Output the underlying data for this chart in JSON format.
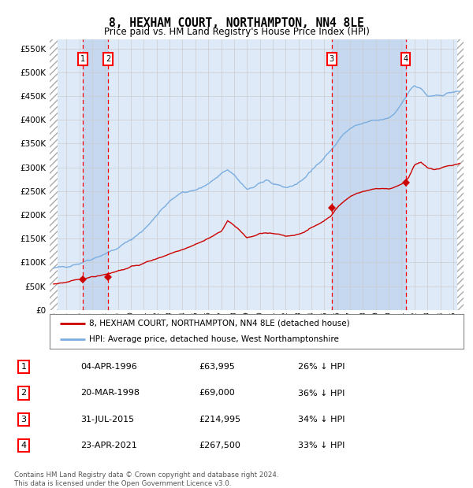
{
  "title": "8, HEXHAM COURT, NORTHAMPTON, NN4 8LE",
  "subtitle": "Price paid vs. HM Land Registry's House Price Index (HPI)",
  "title_fontsize": 10.5,
  "subtitle_fontsize": 8.5,
  "xlim": [
    1993.7,
    2025.8
  ],
  "ylim": [
    0,
    570000
  ],
  "yticks": [
    0,
    50000,
    100000,
    150000,
    200000,
    250000,
    300000,
    350000,
    400000,
    450000,
    500000,
    550000
  ],
  "ytick_labels": [
    "£0",
    "£50K",
    "£100K",
    "£150K",
    "£200K",
    "£250K",
    "£300K",
    "£350K",
    "£400K",
    "£450K",
    "£500K",
    "£550K"
  ],
  "xtick_years": [
    1994,
    1995,
    1996,
    1997,
    1998,
    1999,
    2000,
    2001,
    2002,
    2003,
    2004,
    2005,
    2006,
    2007,
    2008,
    2009,
    2010,
    2011,
    2012,
    2013,
    2014,
    2015,
    2016,
    2017,
    2018,
    2019,
    2020,
    2021,
    2022,
    2023,
    2024,
    2025
  ],
  "grid_color": "#cccccc",
  "bg_color": "#deeaf7",
  "shade_color": "#c5d8ef",
  "red_line_color": "#cc0000",
  "blue_line_color": "#7aade0",
  "sale_color": "#cc0000",
  "transactions": [
    {
      "num": 1,
      "year": 1996.27,
      "price": 63995,
      "label": "1"
    },
    {
      "num": 2,
      "year": 1998.22,
      "price": 69000,
      "label": "2"
    },
    {
      "num": 3,
      "year": 2015.58,
      "price": 214995,
      "label": "3"
    },
    {
      "num": 4,
      "year": 2021.31,
      "price": 267500,
      "label": "4"
    }
  ],
  "table_rows": [
    {
      "num": "1",
      "date": "04-APR-1996",
      "price": "£63,995",
      "pct": "26% ↓ HPI"
    },
    {
      "num": "2",
      "date": "20-MAR-1998",
      "price": "£69,000",
      "pct": "36% ↓ HPI"
    },
    {
      "num": "3",
      "date": "31-JUL-2015",
      "price": "£214,995",
      "pct": "34% ↓ HPI"
    },
    {
      "num": "4",
      "date": "23-APR-2021",
      "price": "£267,500",
      "pct": "33% ↓ HPI"
    }
  ],
  "legend_line1": "8, HEXHAM COURT, NORTHAMPTON, NN4 8LE (detached house)",
  "legend_line2": "HPI: Average price, detached house, West Northamptonshire",
  "footer": "Contains HM Land Registry data © Crown copyright and database right 2024.\nThis data is licensed under the Open Government Licence v3.0.",
  "vline_shade_pairs": [
    [
      1996.27,
      1998.22
    ],
    [
      2015.58,
      2021.31
    ]
  ],
  "hpi_keypoints": [
    [
      1994.0,
      87000
    ],
    [
      1995.0,
      92000
    ],
    [
      1996.0,
      98000
    ],
    [
      1997.0,
      108000
    ],
    [
      1998.0,
      118000
    ],
    [
      1999.0,
      130000
    ],
    [
      2000.0,
      148000
    ],
    [
      2001.0,
      168000
    ],
    [
      2002.0,
      200000
    ],
    [
      2003.0,
      228000
    ],
    [
      2004.0,
      248000
    ],
    [
      2005.0,
      252000
    ],
    [
      2006.0,
      265000
    ],
    [
      2007.0,
      285000
    ],
    [
      2007.5,
      296000
    ],
    [
      2008.0,
      282000
    ],
    [
      2008.5,
      268000
    ],
    [
      2009.0,
      255000
    ],
    [
      2009.5,
      258000
    ],
    [
      2010.0,
      267000
    ],
    [
      2010.5,
      270000
    ],
    [
      2011.0,
      265000
    ],
    [
      2011.5,
      263000
    ],
    [
      2012.0,
      258000
    ],
    [
      2012.5,
      260000
    ],
    [
      2013.0,
      268000
    ],
    [
      2013.5,
      278000
    ],
    [
      2014.0,
      292000
    ],
    [
      2014.5,
      308000
    ],
    [
      2015.0,
      322000
    ],
    [
      2015.5,
      335000
    ],
    [
      2016.0,
      352000
    ],
    [
      2016.5,
      370000
    ],
    [
      2017.0,
      382000
    ],
    [
      2017.5,
      388000
    ],
    [
      2018.0,
      392000
    ],
    [
      2018.5,
      396000
    ],
    [
      2019.0,
      398000
    ],
    [
      2019.5,
      400000
    ],
    [
      2020.0,
      403000
    ],
    [
      2020.5,
      415000
    ],
    [
      2021.0,
      435000
    ],
    [
      2021.5,
      458000
    ],
    [
      2022.0,
      472000
    ],
    [
      2022.5,
      465000
    ],
    [
      2023.0,
      450000
    ],
    [
      2023.5,
      448000
    ],
    [
      2024.0,
      452000
    ],
    [
      2024.5,
      455000
    ],
    [
      2025.0,
      458000
    ],
    [
      2025.5,
      460000
    ]
  ],
  "red_keypoints": [
    [
      1994.0,
      55000
    ],
    [
      1995.0,
      58000
    ],
    [
      1996.0,
      63000
    ],
    [
      1997.0,
      70000
    ],
    [
      1998.0,
      75000
    ],
    [
      1999.0,
      82000
    ],
    [
      2000.0,
      90000
    ],
    [
      2001.0,
      98000
    ],
    [
      2002.0,
      108000
    ],
    [
      2003.0,
      118000
    ],
    [
      2004.0,
      128000
    ],
    [
      2005.0,
      138000
    ],
    [
      2006.0,
      150000
    ],
    [
      2007.0,
      165000
    ],
    [
      2007.5,
      188000
    ],
    [
      2008.0,
      178000
    ],
    [
      2008.5,
      165000
    ],
    [
      2009.0,
      152000
    ],
    [
      2009.5,
      155000
    ],
    [
      2010.0,
      160000
    ],
    [
      2010.5,
      162000
    ],
    [
      2011.0,
      160000
    ],
    [
      2011.5,
      158000
    ],
    [
      2012.0,
      155000
    ],
    [
      2012.5,
      157000
    ],
    [
      2013.0,
      160000
    ],
    [
      2013.5,
      165000
    ],
    [
      2014.0,
      172000
    ],
    [
      2014.5,
      180000
    ],
    [
      2015.0,
      188000
    ],
    [
      2015.5,
      198000
    ],
    [
      2016.0,
      215000
    ],
    [
      2016.5,
      228000
    ],
    [
      2017.0,
      238000
    ],
    [
      2017.5,
      245000
    ],
    [
      2018.0,
      250000
    ],
    [
      2018.5,
      252000
    ],
    [
      2019.0,
      255000
    ],
    [
      2019.5,
      256000
    ],
    [
      2020.0,
      255000
    ],
    [
      2020.5,
      258000
    ],
    [
      2021.0,
      265000
    ],
    [
      2021.5,
      278000
    ],
    [
      2022.0,
      305000
    ],
    [
      2022.5,
      310000
    ],
    [
      2023.0,
      298000
    ],
    [
      2023.5,
      295000
    ],
    [
      2024.0,
      298000
    ],
    [
      2024.5,
      302000
    ],
    [
      2025.0,
      305000
    ],
    [
      2025.5,
      308000
    ]
  ]
}
